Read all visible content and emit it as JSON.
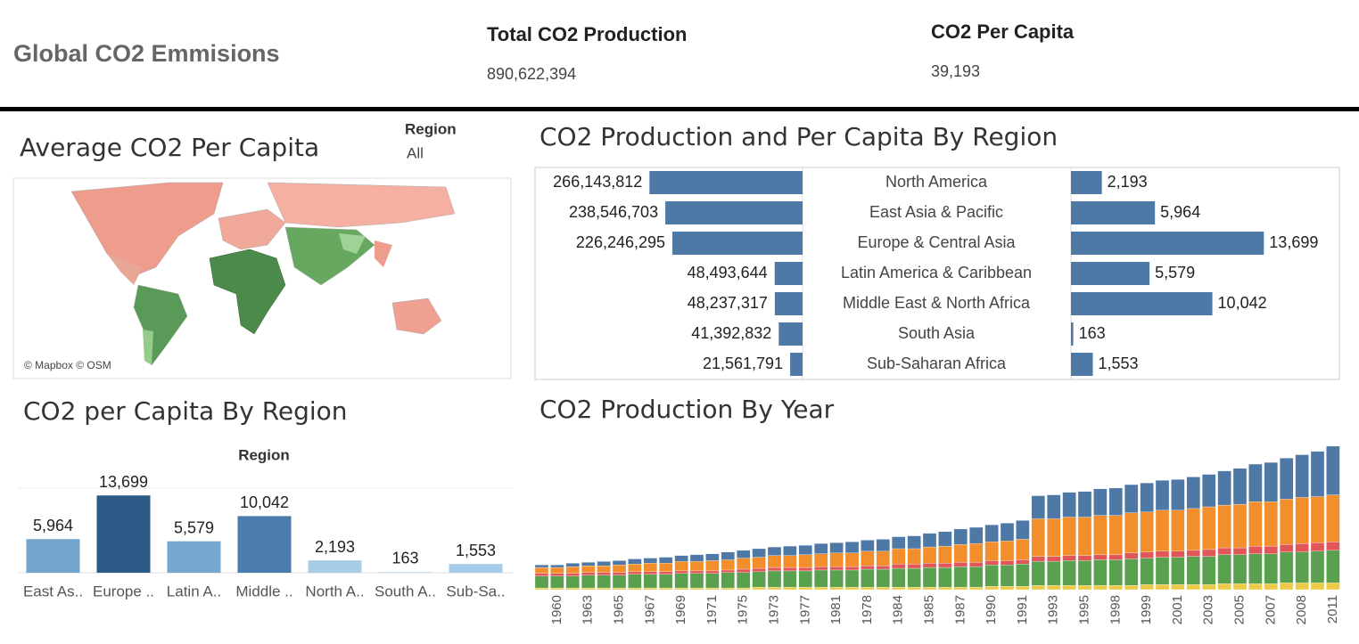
{
  "header": {
    "title": "Global CO2 Emmisions",
    "kpis": [
      {
        "label": "Total CO2 Production",
        "value": "890,622,394"
      },
      {
        "label": "CO2 Per Capita",
        "value": "39,193"
      }
    ]
  },
  "map": {
    "title": "Average CO2 Per Capita",
    "filter_label": "Region",
    "filter_value": "All",
    "attribution": "© Mapbox © OSM"
  },
  "chart_data": [
    {
      "type": "diverging_bar",
      "title": "CO2 Production and Per Capita By Region",
      "categories": [
        "North America",
        "East Asia & Pacific",
        "Europe & Central Asia",
        "Latin America & Caribbean",
        "Middle East & North Africa",
        "South Asia",
        "Sub-Saharan Africa"
      ],
      "xlim": [
        0,
        465000000
      ],
      "x2lim": [
        0,
        19000
      ],
      "series": [
        {
          "color": "#4e79a7",
          "values": [
            266143812,
            238546703,
            226246295,
            48493644,
            48237317,
            41392832,
            21561791
          ],
          "value_labels": [
            "266,143,812",
            "238,546,703",
            "226,246,295",
            "48,493,644",
            "48,237,317",
            "41,392,832",
            "21,561,791"
          ]
        },
        {
          "color": "#4e79a7",
          "axis": "x2",
          "values": [
            2193,
            5964,
            13699,
            5579,
            10042,
            163,
            1553
          ],
          "value_labels": [
            "2,193",
            "5,964",
            "13,699",
            "5,579",
            "10,042",
            "163",
            "1,553"
          ]
        }
      ]
    },
    {
      "type": "bar",
      "title": "CO2 per Capita By Region",
      "x_label": "Region",
      "categories": [
        "East As..",
        "Europe ..",
        "Latin A..",
        "Middle ..",
        "North A..",
        "South A..",
        "Sub-Sa.."
      ],
      "values": [
        5964,
        13699,
        5579,
        10042,
        2193,
        163,
        1553
      ],
      "value_labels": [
        "5,964",
        "13,699",
        "5,579",
        "10,042",
        "2,193",
        "163",
        "1,553"
      ],
      "colors": [
        "#73a5cc",
        "#2c5a87",
        "#76a8d0",
        "#4a7cad",
        "#a6cde8",
        "#c9e0f2",
        "#a4cbe7"
      ],
      "ylim": [
        0,
        15000
      ]
    },
    {
      "type": "stacked_bar",
      "title": "CO2 Production By Year",
      "categories": [
        null,
        "1960",
        null,
        "1963",
        null,
        "1965",
        null,
        "1967",
        null,
        "1969",
        null,
        "1971",
        null,
        "1975",
        null,
        "1973",
        null,
        "1977",
        null,
        "1981",
        null,
        "1978",
        null,
        "1984",
        null,
        "1985",
        null,
        "1987",
        null,
        "1990",
        null,
        "1991",
        null,
        "1993",
        null,
        "1995",
        null,
        "1998",
        null,
        "1999",
        null,
        "2001",
        null,
        "2003",
        null,
        "2005",
        null,
        "2007",
        null,
        "2008",
        null,
        "2011"
      ],
      "ylim": [
        0,
        170
      ],
      "series": [
        {
          "color": "#edc948",
          "values": [
            2,
            2,
            2,
            2,
            2,
            2,
            2,
            2,
            2,
            2,
            2,
            2,
            2,
            2,
            3,
            3,
            3,
            3,
            3,
            3,
            3,
            3,
            3,
            3,
            3,
            3,
            3,
            3,
            3,
            4,
            4,
            4,
            5,
            5,
            5,
            5,
            5,
            5,
            5,
            6,
            6,
            6,
            6,
            6,
            7,
            7,
            7,
            7,
            8,
            8,
            8,
            8
          ]
        },
        {
          "color": "#59a14f",
          "values": [
            14,
            14,
            14,
            15,
            15,
            15,
            16,
            16,
            16,
            17,
            17,
            17,
            18,
            18,
            18,
            19,
            19,
            19,
            20,
            20,
            20,
            21,
            21,
            22,
            22,
            23,
            23,
            24,
            24,
            25,
            25,
            26,
            28,
            28,
            29,
            29,
            30,
            30,
            31,
            31,
            32,
            32,
            33,
            33,
            34,
            34,
            35,
            35,
            36,
            36,
            37,
            38
          ]
        },
        {
          "color": "#e15759",
          "values": [
            3,
            3,
            3,
            3,
            3,
            3,
            3,
            3,
            3,
            3,
            3,
            3,
            3,
            4,
            4,
            4,
            4,
            4,
            4,
            4,
            4,
            4,
            4,
            5,
            5,
            5,
            5,
            5,
            5,
            5,
            5,
            5,
            6,
            6,
            6,
            6,
            6,
            6,
            7,
            7,
            7,
            7,
            7,
            8,
            8,
            8,
            9,
            9,
            9,
            10,
            10,
            10
          ]
        },
        {
          "color": "#f28e2b",
          "values": [
            7,
            7,
            8,
            8,
            8,
            9,
            9,
            10,
            10,
            11,
            11,
            12,
            12,
            13,
            13,
            14,
            14,
            15,
            15,
            16,
            16,
            17,
            17,
            18,
            18,
            19,
            20,
            21,
            22,
            22,
            23,
            24,
            44,
            44,
            45,
            45,
            46,
            46,
            47,
            47,
            48,
            48,
            49,
            50,
            50,
            51,
            52,
            52,
            53,
            54,
            54,
            55
          ]
        },
        {
          "color": "#4e79a7",
          "values": [
            3,
            3,
            4,
            4,
            5,
            5,
            6,
            6,
            7,
            7,
            8,
            8,
            9,
            9,
            10,
            10,
            11,
            11,
            12,
            12,
            13,
            13,
            14,
            14,
            15,
            16,
            17,
            18,
            19,
            20,
            21,
            22,
            27,
            28,
            29,
            30,
            31,
            32,
            33,
            34,
            35,
            36,
            37,
            38,
            40,
            42,
            44,
            46,
            48,
            50,
            53,
            57
          ]
        }
      ]
    }
  ]
}
